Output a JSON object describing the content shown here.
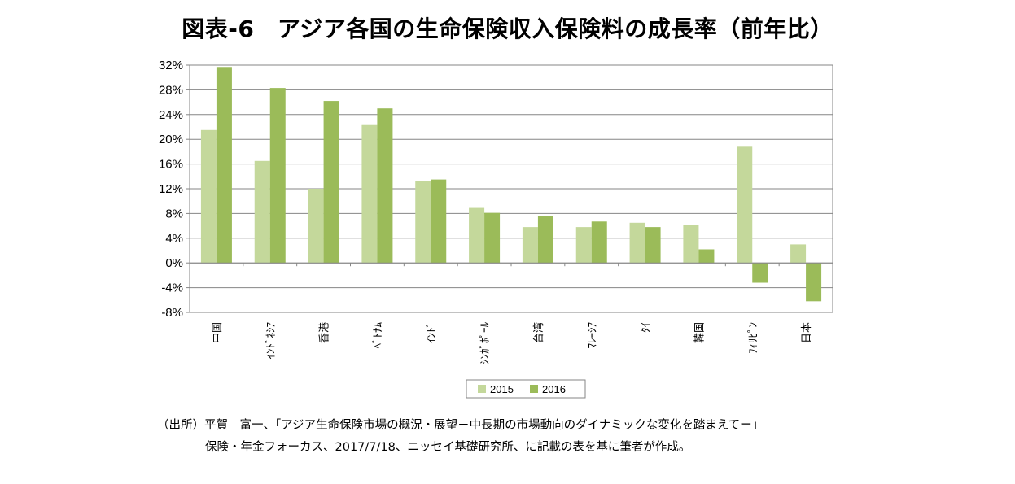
{
  "title": "図表-6　アジア各国の生命保険収入保険料の成長率（前年比）",
  "source": {
    "line1": "（出所）平賀　富一、「アジア生命保険市場の概況・展望－中長期の市場動向のダイナミックな変化を踏まえてー」",
    "line2": "保険・年金フォーカス、2017/7/18、ニッセイ基礎研究所、に記載の表を基に筆者が作成。"
  },
  "chart_data": {
    "type": "bar",
    "title": "図表-6　アジア各国の生命保険収入保険料の成長率（前年比）",
    "xlabel": "",
    "ylabel": "",
    "categories": [
      "中国",
      "ｲﾝﾄﾞﾈｼｱ",
      "香港",
      "ﾍﾞﾄﾅﾑ",
      "ｲﾝﾄﾞ",
      "ｼﾝｶﾞﾎﾟｰﾙ",
      "台湾",
      "ﾏﾚｰｼｱ",
      "ﾀｲ",
      "韓国",
      "ﾌｨﾘﾋﾟﾝ",
      "日本"
    ],
    "series": [
      {
        "name": "2015",
        "color": "#c4d89b",
        "values": [
          21.5,
          16.5,
          12.0,
          22.3,
          13.2,
          8.9,
          5.8,
          5.8,
          6.5,
          6.1,
          18.8,
          3.0
        ]
      },
      {
        "name": "2016",
        "color": "#9bbb59",
        "values": [
          31.7,
          28.3,
          26.2,
          25.0,
          13.5,
          8.1,
          7.6,
          6.7,
          5.8,
          2.2,
          -3.2,
          -6.2
        ]
      }
    ],
    "ylim": [
      -8,
      32
    ],
    "yticks": [
      32,
      28,
      24,
      20,
      16,
      12,
      8,
      4,
      0,
      -4,
      -8
    ],
    "ytick_format": "percent",
    "grid": true,
    "legend_position": "bottom"
  }
}
